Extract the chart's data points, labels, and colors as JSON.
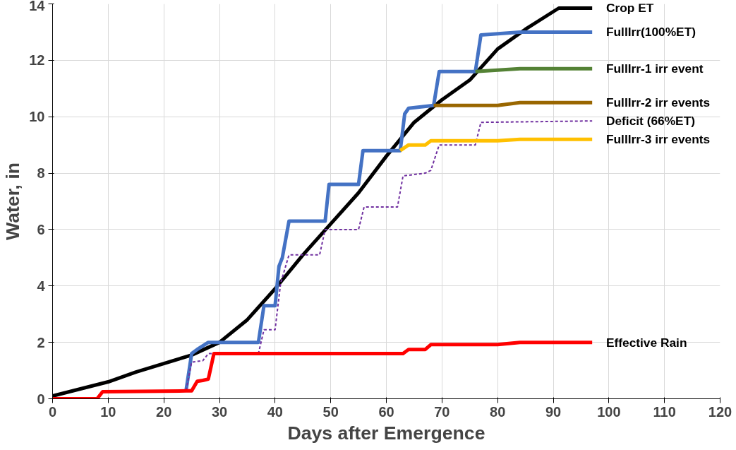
{
  "chart_data": {
    "type": "line",
    "xlabel": "Days after Emergence",
    "ylabel": "Water, in",
    "xlim": [
      0,
      120
    ],
    "ylim": [
      0,
      14
    ],
    "xticks": [
      0,
      10,
      20,
      30,
      40,
      50,
      60,
      70,
      80,
      90,
      100,
      110,
      120
    ],
    "yticks": [
      0,
      2,
      4,
      6,
      8,
      10,
      12,
      14
    ],
    "grid": true,
    "legend": false,
    "marker": "none",
    "series": [
      {
        "name": "Crop ET",
        "color": "#000000",
        "line_style": "solid",
        "x": [
          0,
          5,
          10,
          15,
          20,
          25,
          30,
          35,
          40,
          45,
          50,
          55,
          60,
          65,
          70,
          75,
          80,
          85,
          91,
          97
        ],
        "values": [
          0.1,
          0.35,
          0.6,
          0.95,
          1.25,
          1.55,
          2.0,
          2.8,
          3.9,
          5.1,
          6.2,
          7.3,
          8.6,
          9.8,
          10.6,
          11.3,
          12.4,
          13.1,
          13.85,
          13.85
        ]
      },
      {
        "name": "FullIrr(100%ET)",
        "color": "#4472c4",
        "line_style": "solid",
        "x": [
          24,
          25,
          26,
          28,
          37,
          38,
          40,
          40.7,
          41.3,
          42.5,
          49,
          49.7,
          55,
          55.8,
          62.5,
          63.3,
          64,
          68.5,
          69.5,
          76,
          77,
          84,
          97
        ],
        "values": [
          0.3,
          1.6,
          1.75,
          2.0,
          2.0,
          3.3,
          3.3,
          4.7,
          5.0,
          6.3,
          6.3,
          7.6,
          7.6,
          8.8,
          8.8,
          10.1,
          10.3,
          10.4,
          11.6,
          11.6,
          12.9,
          13.0,
          13.0
        ]
      },
      {
        "name": "FullIrr-1 irr event",
        "color": "#548235",
        "line_style": "solid",
        "x": [
          76,
          84,
          97
        ],
        "values": [
          11.6,
          11.7,
          11.7
        ]
      },
      {
        "name": "FullIrr-2 irr events",
        "color": "#996600",
        "line_style": "solid",
        "x": [
          68.5,
          80,
          84,
          97
        ],
        "values": [
          10.4,
          10.4,
          10.5,
          10.5
        ]
      },
      {
        "name": "Deficit (66%ET)",
        "color": "#7030a0",
        "line_style": "dashed",
        "x": [
          24,
          25,
          27,
          28,
          37,
          38,
          40,
          41,
          42.5,
          48,
          49,
          55,
          56,
          62,
          63,
          67,
          68,
          69.5,
          76,
          77,
          97
        ],
        "values": [
          0.3,
          1.3,
          1.35,
          1.6,
          1.6,
          2.45,
          2.45,
          4.1,
          5.1,
          5.1,
          6.0,
          6.0,
          6.8,
          6.8,
          7.9,
          8.0,
          8.1,
          9.0,
          9.0,
          9.8,
          9.85
        ]
      },
      {
        "name": "FullIrr-3 irr events",
        "color": "#ffc000",
        "line_style": "solid",
        "x": [
          62.5,
          64,
          67,
          68,
          80,
          84,
          97
        ],
        "values": [
          8.8,
          9.0,
          9.0,
          9.15,
          9.15,
          9.2,
          9.2
        ]
      },
      {
        "name": "Effective Rain",
        "color": "#ff0000",
        "line_style": "solid",
        "x": [
          0,
          8,
          9,
          24,
          25,
          26,
          27,
          28,
          29,
          63,
          64,
          67,
          68,
          80,
          84,
          97
        ],
        "values": [
          0,
          0,
          0.25,
          0.28,
          0.28,
          0.62,
          0.65,
          0.7,
          1.6,
          1.6,
          1.75,
          1.75,
          1.92,
          1.92,
          2.0,
          2.0
        ]
      }
    ]
  }
}
